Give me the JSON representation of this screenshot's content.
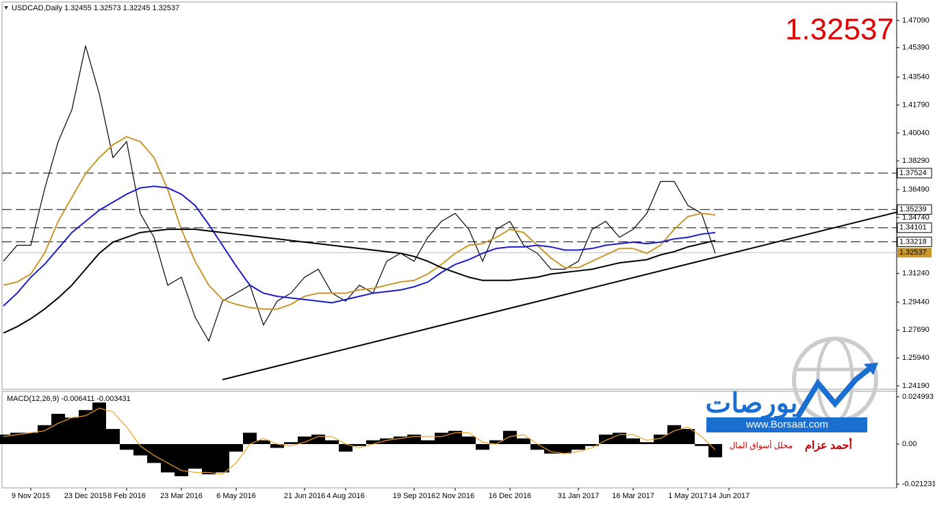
{
  "chart_data": {
    "type": "line",
    "title": "USDCAD,Daily  1.32455 1.32573 1.32245 1.32537",
    "current_price": 1.32537,
    "categories": [
      null,
      null,
      "9 Nov 2015",
      null,
      null,
      null,
      "23 Dec 2015",
      null,
      null,
      "8 Feb 2016",
      null,
      null,
      null,
      "23 Mar 2016",
      null,
      null,
      null,
      "6 May 2016",
      null,
      null,
      null,
      null,
      "21 Jun 2016",
      null,
      null,
      "4 Aug 2016",
      null,
      null,
      null,
      null,
      "19 Sep 2016",
      null,
      null,
      "2 Nov 2016",
      null,
      null,
      null,
      "16 Dec 2016",
      null,
      null,
      null,
      null,
      "31 Jan 2017",
      null,
      null,
      null,
      "16 Mar 2017",
      null,
      null,
      null,
      "1 May 2017",
      null,
      null,
      "14 Jun 2017",
      null
    ],
    "ylim": [
      1.2393,
      1.4816
    ],
    "yticks": [
      {
        "value": 1.4709,
        "label": "1.47090"
      },
      {
        "value": 1.4539,
        "label": "1.45390"
      },
      {
        "value": 1.4354,
        "label": "1.43540"
      },
      {
        "value": 1.4179,
        "label": "1.41790"
      },
      {
        "value": 1.4004,
        "label": "1.40040"
      },
      {
        "value": 1.3829,
        "label": "1.38290"
      },
      {
        "value": 1.3649,
        "label": "1.36490"
      },
      {
        "value": 1.3474,
        "label": "1.34740"
      },
      {
        "value": 1.3124,
        "label": "1.31240"
      },
      {
        "value": 1.2944,
        "label": "1.29440"
      },
      {
        "value": 1.2769,
        "label": "1.27690"
      },
      {
        "value": 1.2594,
        "label": "1.25940"
      },
      {
        "value": 1.2419,
        "label": "1.24190"
      }
    ],
    "levels": [
      1.37524,
      1.35239,
      1.34101,
      1.33218
    ],
    "trend_line": {
      "start": 1.2458,
      "end": 1.3225
    },
    "series": [
      {
        "color": "#000000",
        "values": [
          1.32,
          1.33,
          1.33,
          1.365,
          1.395,
          1.415,
          1.455,
          1.425,
          1.385,
          1.395,
          1.35,
          1.335,
          1.305,
          1.31,
          1.285,
          1.27,
          1.295,
          1.3,
          1.305,
          1.28,
          1.295,
          1.3,
          1.31,
          1.315,
          1.3,
          1.295,
          1.305,
          1.3,
          1.32,
          1.325,
          1.32,
          1.335,
          1.345,
          1.35,
          1.34,
          1.32,
          1.34,
          1.345,
          1.33,
          1.325,
          1.315,
          1.315,
          1.32,
          1.34,
          1.345,
          1.335,
          1.34,
          1.35,
          1.37,
          1.37,
          1.355,
          1.35,
          1.325,
          null,
          null
        ]
      },
      {
        "color": "#c8962a",
        "values": [
          1.305,
          1.307,
          1.312,
          1.325,
          1.345,
          1.36,
          1.375,
          1.385,
          1.393,
          1.398,
          1.395,
          1.385,
          1.365,
          1.34,
          1.32,
          1.305,
          1.296,
          1.293,
          1.291,
          1.29,
          1.29,
          1.293,
          1.298,
          1.3,
          1.3,
          1.3,
          1.302,
          1.303,
          1.305,
          1.307,
          1.308,
          1.312,
          1.318,
          1.325,
          1.33,
          1.331,
          1.335,
          1.34,
          1.338,
          1.33,
          1.322,
          1.316,
          1.316,
          1.32,
          1.324,
          1.328,
          1.328,
          1.325,
          1.33,
          1.34,
          1.348,
          1.35,
          1.349,
          null,
          null
        ]
      },
      {
        "color": "#1a1acc",
        "values": [
          1.292,
          1.3,
          1.31,
          1.318,
          1.328,
          1.338,
          1.345,
          1.352,
          1.357,
          1.362,
          1.366,
          1.367,
          1.366,
          1.362,
          1.355,
          1.343,
          1.33,
          1.317,
          1.305,
          1.3,
          1.298,
          1.297,
          1.296,
          1.295,
          1.294,
          1.296,
          1.298,
          1.3,
          1.301,
          1.302,
          1.304,
          1.307,
          1.313,
          1.318,
          1.321,
          1.325,
          1.328,
          1.329,
          1.329,
          1.33,
          1.329,
          1.327,
          1.327,
          1.328,
          1.33,
          1.331,
          1.332,
          1.331,
          1.332,
          1.334,
          1.335,
          1.337,
          1.338,
          null,
          null
        ]
      },
      {
        "color": "#000000",
        "values": [
          1.275,
          1.279,
          1.284,
          1.29,
          1.297,
          1.305,
          1.315,
          1.325,
          1.332,
          1.335,
          1.338,
          1.339,
          1.34,
          1.34,
          1.34,
          1.339,
          1.338,
          1.337,
          1.336,
          1.335,
          1.334,
          1.333,
          1.332,
          1.331,
          1.33,
          1.329,
          1.328,
          1.327,
          1.326,
          1.325,
          1.323,
          1.32,
          1.316,
          1.313,
          1.31,
          1.308,
          1.308,
          1.308,
          1.309,
          1.31,
          1.312,
          1.313,
          1.314,
          1.315,
          1.317,
          1.319,
          1.32,
          1.321,
          1.324,
          1.326,
          1.329,
          1.331,
          1.333,
          null,
          null
        ]
      }
    ],
    "macd": {
      "title": "MACD(12,26,9) -0.006411 -0.003431",
      "ylim": [
        -0.0228,
        0.0279
      ],
      "yticks": [
        0.024993,
        {
          "value": 0,
          "label": "0.00"
        },
        -0.021231
      ],
      "histogram": [
        0.005,
        0.006,
        0.006,
        0.01,
        0.016,
        0.014,
        0.018,
        0.022,
        0.008,
        -0.003,
        -0.006,
        -0.01,
        -0.015,
        -0.017,
        -0.013,
        -0.016,
        -0.015,
        -0.004,
        0.006,
        0.002,
        -0.002,
        0.001,
        0.004,
        0.005,
        0.002,
        -0.004,
        -0.001,
        0.002,
        0.003,
        0.004,
        0.005,
        0.002,
        0.006,
        0.007,
        0.004,
        -0.003,
        0.002,
        0.007,
        0.003,
        -0.003,
        -0.005,
        -0.005,
        -0.003,
        -0.001,
        0.005,
        0.006,
        0.003,
        0.001,
        0.005,
        0.01,
        0.008,
        -0.001,
        -0.007,
        null,
        null
      ],
      "signal": {
        "color": "#f0a020",
        "values": [
          0.004,
          0.005,
          0.006,
          0.007,
          0.011,
          0.014,
          0.015,
          0.019,
          0.017,
          0.009,
          -0.001,
          -0.006,
          -0.01,
          -0.014,
          -0.015,
          -0.015,
          -0.016,
          -0.01,
          0.0,
          0.003,
          0.0,
          -0.001,
          0.001,
          0.004,
          0.004,
          0.0,
          -0.002,
          0.0,
          0.002,
          0.003,
          0.004,
          0.004,
          0.004,
          0.006,
          0.006,
          0.001,
          0.0,
          0.004,
          0.005,
          0.0,
          -0.004,
          -0.005,
          -0.004,
          -0.002,
          0.002,
          0.005,
          0.005,
          0.002,
          0.003,
          0.007,
          0.009,
          0.004,
          -0.003,
          null,
          null
        ]
      }
    }
  },
  "logo": {
    "name": "بورصات",
    "site": "www.Borsaat.com",
    "author": "أحمد عزام",
    "role": "محلل أسواق المال"
  }
}
